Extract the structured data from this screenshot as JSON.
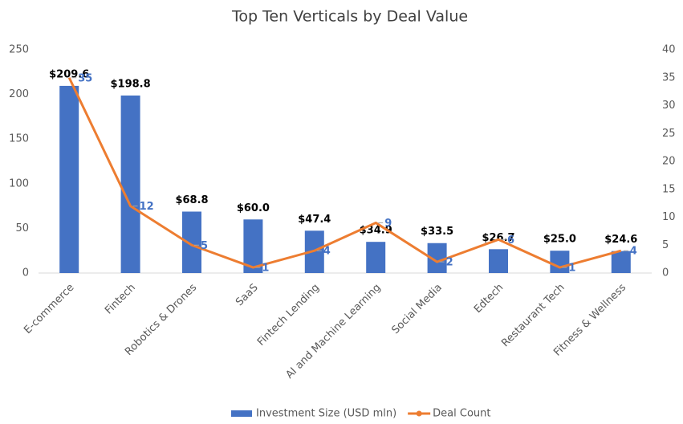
{
  "chart_data": {
    "type": "bar",
    "title": "Top Ten Verticals by Deal Value",
    "categories": [
      "E-commerce",
      "Fintech",
      "Robotics & Drones",
      "SaaS",
      "Fintech Lending",
      "AI and Machine Learning",
      "Social Media",
      "Edtech",
      "Restaurant Tech",
      "Fitness & Wellness"
    ],
    "series": [
      {
        "name": "Investment Size (USD mln)",
        "color": "#4472c4",
        "type": "bar",
        "values": [
          209.6,
          198.8,
          68.8,
          60.0,
          47.4,
          34.9,
          33.5,
          26.7,
          25.0,
          24.6
        ],
        "value_labels": [
          "$209.6",
          "$198.8",
          "$68.8",
          "$60.0",
          "$47.4",
          "$34.9",
          "$33.5",
          "$26.7",
          "$25.0",
          "$24.6"
        ]
      },
      {
        "name": "Deal Count",
        "color": "#ed7d31",
        "type": "line",
        "axis": "y2",
        "values": [
          35,
          12,
          5,
          1,
          4,
          9,
          2,
          6,
          1,
          4
        ]
      }
    ],
    "ylim": [
      0,
      250
    ],
    "yticks": [
      0,
      50,
      100,
      150,
      200,
      250
    ],
    "y2lim": [
      0,
      40
    ],
    "y2ticks": [
      0,
      5,
      10,
      15,
      20,
      25,
      30,
      35,
      40
    ],
    "grid": false,
    "legend": "bottom"
  }
}
